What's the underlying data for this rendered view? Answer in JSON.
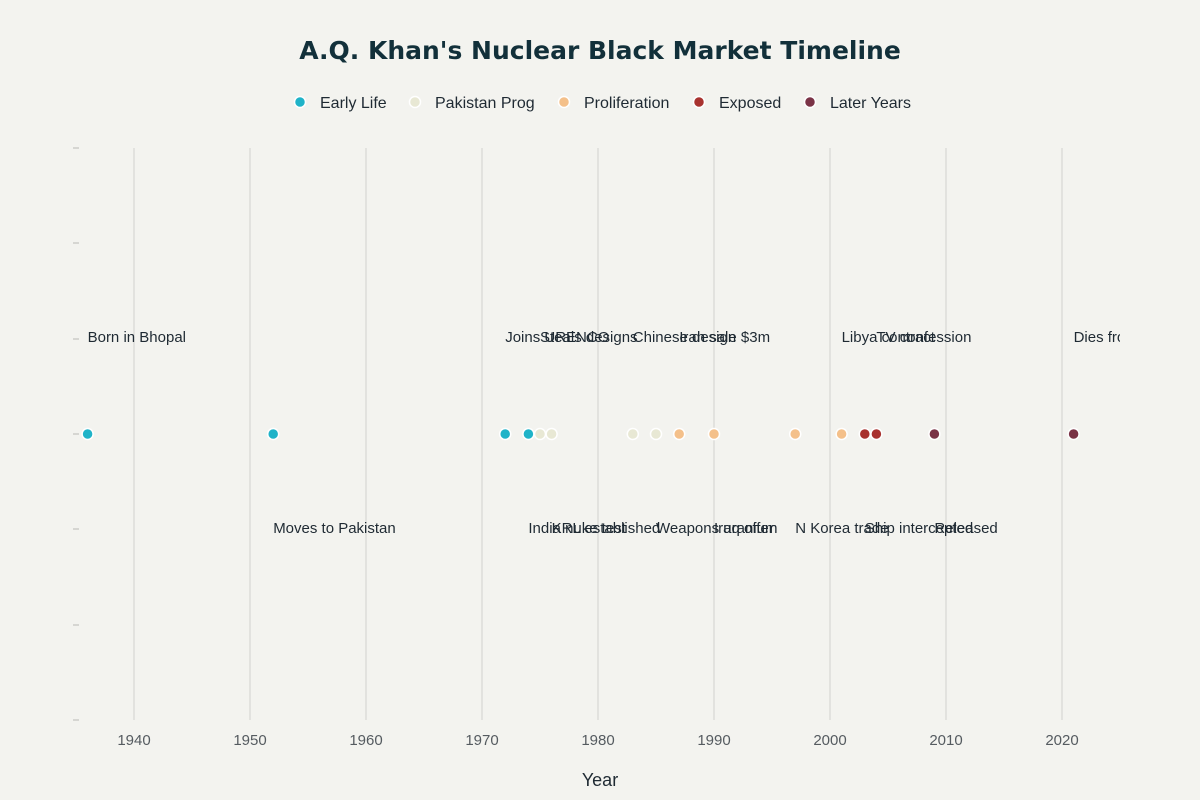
{
  "chart_data": {
    "type": "scatter",
    "title": "A.Q. Khan's Nuclear Black Market Timeline",
    "xlabel": "Year",
    "ylabel": "",
    "xlim": [
      1935,
      2025
    ],
    "x_ticks": [
      1940,
      1950,
      1960,
      1970,
      1980,
      1990,
      2000,
      2010,
      2020
    ],
    "grid": true,
    "legend_position": "top-center",
    "series": [
      {
        "name": "Early Life",
        "color": "#1fb3c8",
        "points": [
          {
            "x": 1936,
            "label": "Born in Bhopal",
            "label_side": "above"
          },
          {
            "x": 1952,
            "label": "Moves to Pakistan",
            "label_side": "below"
          },
          {
            "x": 1972,
            "label": "Joins URENCO",
            "label_side": "above"
          },
          {
            "x": 1974,
            "label": "India nuke test",
            "label_side": "below"
          }
        ]
      },
      {
        "name": "Pakistan Prog",
        "color": "#e8e8d4",
        "points": [
          {
            "x": 1975,
            "label": "Steals designs",
            "label_side": "above"
          },
          {
            "x": 1976,
            "label": "KRL established",
            "label_side": "below"
          },
          {
            "x": 1983,
            "label": "Chinese design",
            "label_side": "above"
          },
          {
            "x": 1985,
            "label": "Weapons uranium",
            "label_side": "below"
          }
        ]
      },
      {
        "name": "Proliferation",
        "color": "#f4c08a",
        "points": [
          {
            "x": 1987,
            "label": "Iran sale $3m",
            "label_side": "above"
          },
          {
            "x": 1990,
            "label": "Iraq offer",
            "label_side": "below"
          },
          {
            "x": 1997,
            "label": "N Korea trade",
            "label_side": "below"
          },
          {
            "x": 2001,
            "label": "Libya contract",
            "label_side": "above"
          }
        ]
      },
      {
        "name": "Exposed",
        "color": "#a8322f",
        "points": [
          {
            "x": 2003,
            "label": "Ship intercepted",
            "label_side": "below"
          },
          {
            "x": 2004,
            "label": "TV confession",
            "label_side": "above"
          }
        ]
      },
      {
        "name": "Later Years",
        "color": "#7a3346",
        "points": [
          {
            "x": 2009,
            "label": "Released",
            "label_side": "below"
          },
          {
            "x": 2021,
            "label": "Dies from COVID",
            "label_side": "above"
          }
        ]
      }
    ]
  }
}
